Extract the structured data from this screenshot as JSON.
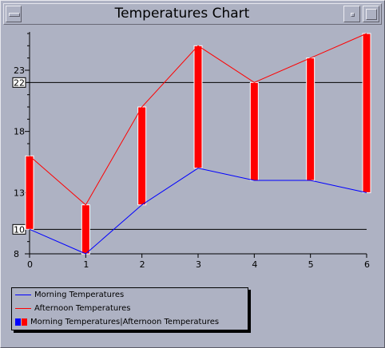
{
  "window": {
    "title": "Temperatures Chart"
  },
  "chart_data": {
    "type": "line",
    "x": [
      0,
      1,
      2,
      3,
      4,
      5,
      6
    ],
    "xlim": [
      0,
      6
    ],
    "ylim": [
      8,
      26
    ],
    "ytick_labels": [
      8,
      13,
      18,
      23
    ],
    "reference_lines": [
      22,
      10
    ],
    "series": [
      {
        "name": "Morning Temperatures",
        "color": "#0000ff",
        "values": [
          10,
          8,
          12,
          15,
          14,
          14,
          13
        ]
      },
      {
        "name": "Afternoon Temperatures",
        "color": "#ff0000",
        "values": [
          16,
          12,
          20,
          25,
          22,
          24,
          26
        ]
      }
    ],
    "range_series": {
      "name": "Morning Temperatures|Afternoon Temperatures",
      "colors": [
        "#0000ff",
        "#ff0000"
      ],
      "bar_color": "#ff0000"
    },
    "legend_position": "bottom-left",
    "grid": false
  }
}
